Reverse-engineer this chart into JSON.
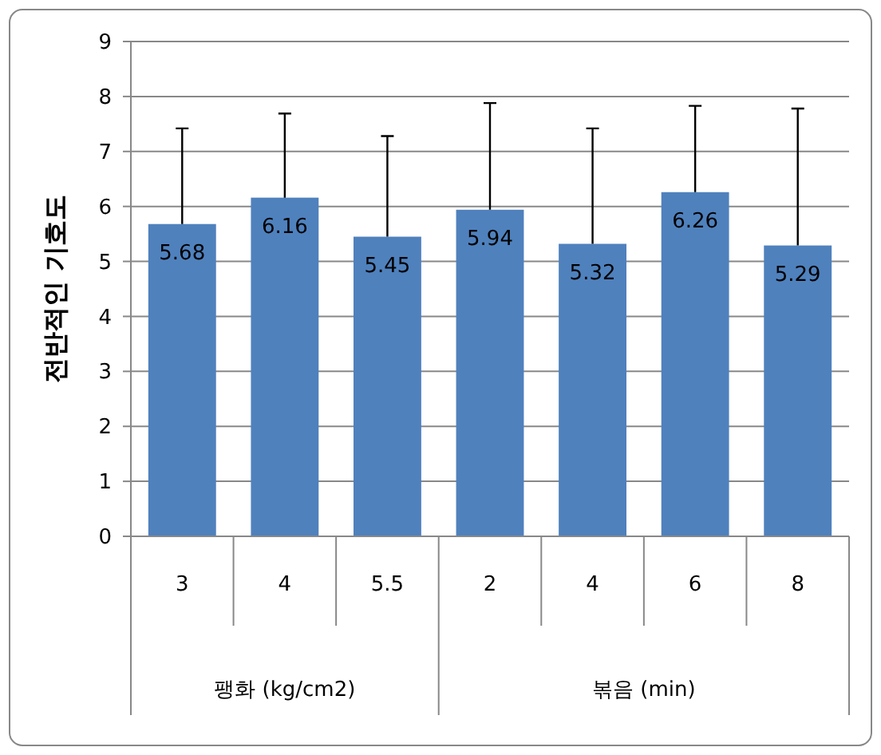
{
  "chart_data": {
    "type": "bar",
    "ylabel": "전반적인 기호도",
    "categories": [
      "3",
      "4",
      "5.5",
      "2",
      "4",
      "6",
      "8"
    ],
    "values": [
      5.68,
      6.16,
      5.45,
      5.94,
      5.32,
      6.26,
      5.29
    ],
    "errors": [
      [
        5.68,
        7.42
      ],
      [
        6.16,
        7.69
      ],
      [
        5.45,
        7.28
      ],
      [
        5.94,
        7.88
      ],
      [
        5.32,
        7.42
      ],
      [
        6.26,
        7.83
      ],
      [
        5.29,
        7.78
      ]
    ],
    "color": "#4f81bd",
    "data_labels": true,
    "ylim": [
      0,
      9
    ],
    "yticks": [
      0,
      1,
      2,
      3,
      4,
      5,
      6,
      7,
      8,
      9
    ],
    "grid": "y",
    "annotations": [
      "팽화 (kg/cm2)",
      "볶음 (min)"
    ]
  }
}
